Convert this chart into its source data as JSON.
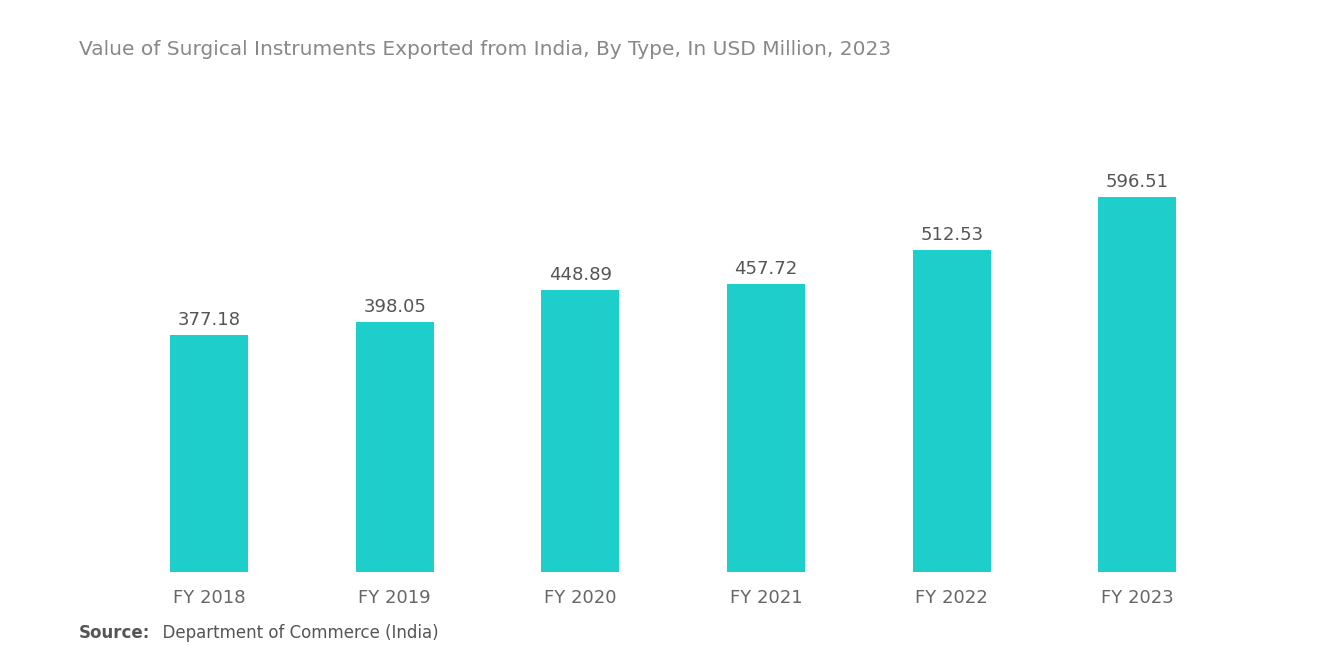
{
  "title": "Value of Surgical Instruments Exported from India, By Type, In USD Million, 2023",
  "categories": [
    "FY 2018",
    "FY 2019",
    "FY 2020",
    "FY 2021",
    "FY 2022",
    "FY 2023"
  ],
  "values": [
    377.18,
    398.05,
    448.89,
    457.72,
    512.53,
    596.51
  ],
  "bar_color": "#1ECECA",
  "background_color": "#ffffff",
  "title_color": "#888888",
  "label_color": "#555555",
  "tick_color": "#666666",
  "source_bold": "Source:",
  "source_rest": "  Department of Commerce (India)",
  "ylim": [
    0,
    720
  ],
  "bar_width": 0.42,
  "title_fontsize": 14.5,
  "label_fontsize": 13,
  "tick_fontsize": 13,
  "source_fontsize": 12
}
